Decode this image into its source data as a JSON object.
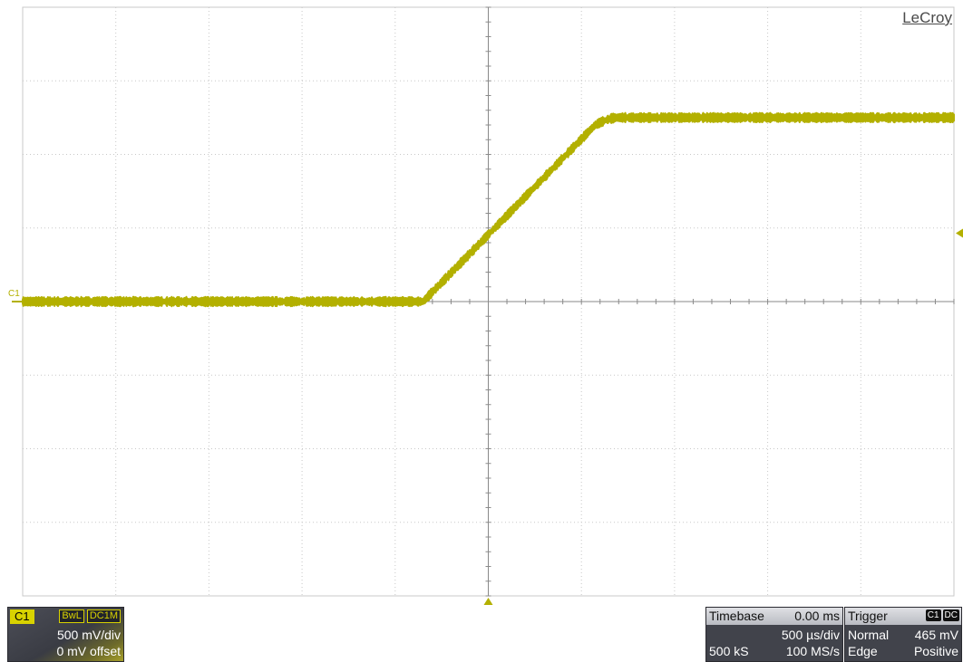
{
  "brand": "LeCroy",
  "channel_marker": "C1",
  "colors": {
    "trace": "#b3b000",
    "grid": "#c8c8c8",
    "axis": "#8a8a8a"
  },
  "trace": {
    "volts_per_div": 0.5,
    "time_per_div_us": 500,
    "baseline_v": 0.0,
    "final_v": 1.25,
    "rise_start_us": -350,
    "rise_end_us": 700,
    "noise_v": 0.02
  },
  "channel_panel": {
    "tag": "C1",
    "badge1": "BwL",
    "badge2": "DC1M",
    "scale": "500 mV/div",
    "offset": "0 mV offset"
  },
  "timebase_panel": {
    "label": "Timebase",
    "delay": "0.00 ms",
    "per_div": "500 µs/div",
    "samples": "500 kS",
    "rate": "100 MS/s"
  },
  "trigger_panel": {
    "label": "Trigger",
    "source_badge": "C1",
    "coupling_badge": "DC",
    "mode": "Normal",
    "level": "465 mV",
    "type": "Edge",
    "slope": "Positive"
  }
}
